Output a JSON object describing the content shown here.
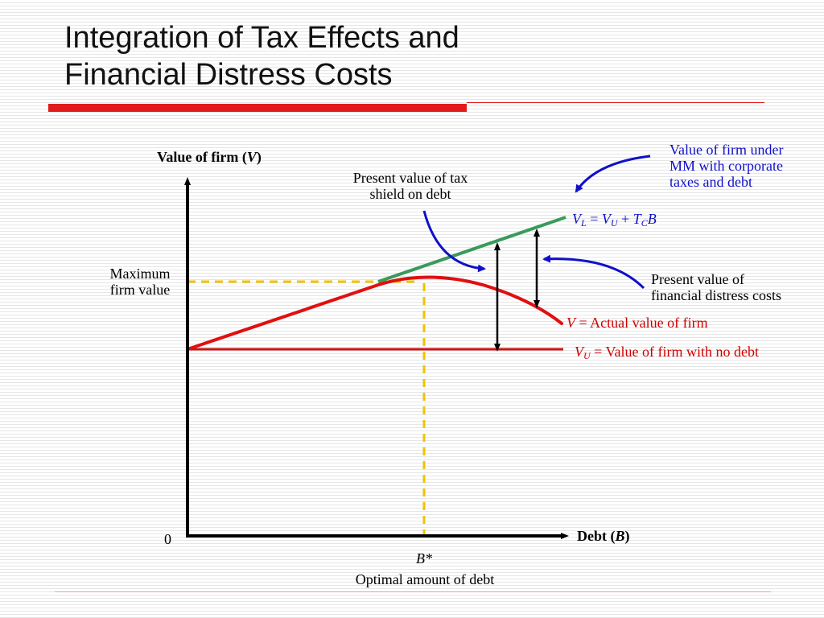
{
  "slide": {
    "title_line1": "Integration of Tax Effects and",
    "title_line2": "Financial Distress Costs"
  },
  "axes": {
    "y_label_text": "Value of firm (",
    "y_label_var": "V",
    "y_label_close": ")",
    "x_label_text": "Debt (",
    "x_label_var": "B",
    "x_label_close": ")",
    "origin": "0"
  },
  "labels": {
    "max_firm_value_line1": "Maximum",
    "max_firm_value_line2": "firm value",
    "optimal_debt_symbol": "B*",
    "optimal_debt_text": "Optimal amount of debt",
    "tax_shield_line1": "Present value of tax",
    "tax_shield_line2": "shield on debt",
    "mm_line1": "Value of firm under",
    "mm_line2": "MM with corporate",
    "mm_line3": "taxes and debt",
    "distress_line1": "Present value of",
    "distress_line2": "financial distress costs"
  },
  "curves": {
    "vl": {
      "v": "V",
      "v_sub": "L",
      "eq": " = ",
      "vu": "V",
      "vu_sub": "U",
      "plus": " + ",
      "t": "T",
      "t_sub": "C",
      "b": "B"
    },
    "v": {
      "v": "V",
      "rest": " = Actual value of firm"
    },
    "vu": {
      "v": "V",
      "v_sub": "U",
      "rest": " = Value of firm with no debt"
    }
  },
  "colors": {
    "title_bar": "#e11b1b",
    "vl_line": "#3a9a5b",
    "v_curve": "#e01010",
    "vu_line": "#cc1414",
    "guide": "#f2c200",
    "arrow_blue": "#1010c8",
    "axis": "#000000"
  }
}
